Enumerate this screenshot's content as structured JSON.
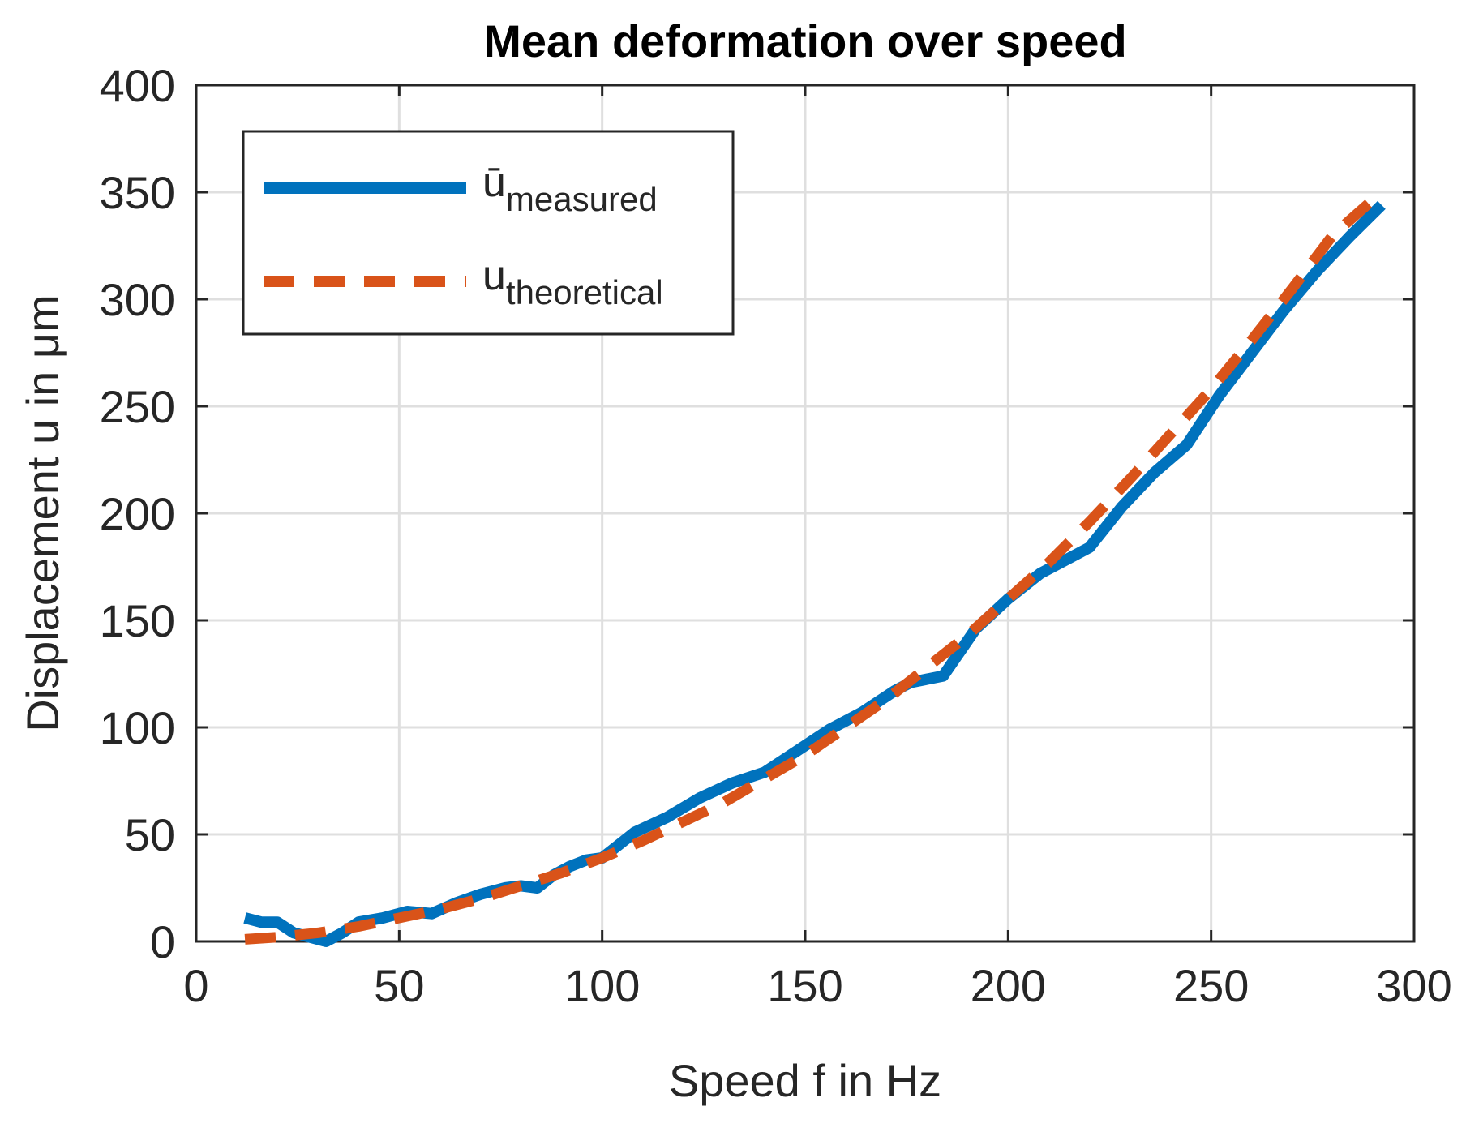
{
  "chart_data": {
    "type": "line",
    "title": "Mean deformation over speed",
    "xlabel": "Speed f in Hz",
    "ylabel": "Displacement u in μm",
    "xlim": [
      0,
      300
    ],
    "ylim": [
      0,
      400
    ],
    "xticks": [
      0,
      50,
      100,
      150,
      200,
      250,
      300
    ],
    "yticks": [
      0,
      50,
      100,
      150,
      200,
      250,
      300,
      350,
      400
    ],
    "grid": true,
    "legend_position": "top-left",
    "series": [
      {
        "name": "measured",
        "legend_base": "ū",
        "legend_sub": "measured",
        "color": "#0072BD",
        "style": "solid",
        "x": [
          12,
          16,
          20,
          24,
          28,
          32,
          36,
          40,
          46,
          52,
          58,
          64,
          70,
          76,
          80,
          84,
          88,
          92,
          96,
          100,
          104,
          108,
          116,
          124,
          132,
          140,
          148,
          156,
          164,
          172,
          176,
          184,
          192,
          200,
          208,
          212,
          220,
          228,
          236,
          244,
          252,
          260,
          268,
          276,
          284,
          292
        ],
        "y": [
          11,
          9,
          9,
          4,
          2,
          0,
          4,
          9,
          11,
          14,
          13,
          18,
          22,
          25,
          26,
          25,
          31,
          35,
          38,
          39,
          45,
          51,
          58,
          67,
          74,
          79,
          89,
          99,
          107,
          117,
          121,
          124,
          146,
          160,
          172,
          176,
          184,
          203,
          219,
          232,
          255,
          275,
          295,
          313,
          329,
          344
        ]
      },
      {
        "name": "theoretical",
        "legend_base": "u",
        "legend_sub": "theoretical",
        "color": "#D95319",
        "style": "dashed",
        "x": [
          12,
          20,
          30,
          40,
          50,
          60,
          70,
          80,
          90,
          100,
          110,
          120,
          130,
          140,
          150,
          160,
          170,
          180,
          190,
          200,
          210,
          220,
          230,
          240,
          250,
          260,
          270,
          280,
          292
        ],
        "y": [
          1,
          2,
          4,
          7,
          11,
          15,
          20,
          26,
          32,
          39,
          47,
          56,
          65,
          76,
          87,
          100,
          113,
          128,
          143,
          160,
          177,
          196,
          216,
          237,
          258,
          281,
          305,
          330,
          350
        ]
      }
    ]
  }
}
